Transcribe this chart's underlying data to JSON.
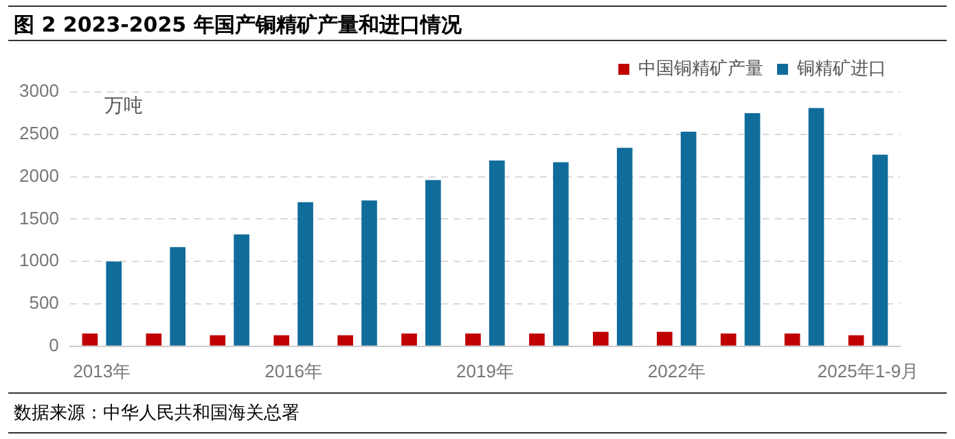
{
  "chart_data": {
    "type": "bar",
    "title": "图 2 2023-2025 年国产铜精矿产量和进口情况",
    "ylabel": "万吨",
    "categories": [
      "2013年",
      null,
      null,
      "2016年",
      null,
      null,
      "2019年",
      null,
      null,
      "2022年",
      null,
      null,
      "2025年1-9月"
    ],
    "series": [
      {
        "name": "中国铜精矿产量",
        "color": "#c00000",
        "values": [
          150,
          150,
          130,
          130,
          130,
          150,
          150,
          150,
          170,
          170,
          150,
          150,
          130
        ]
      },
      {
        "name": "铜精矿进口",
        "color": "#106c9b",
        "values": [
          1000,
          1170,
          1320,
          1700,
          1720,
          1960,
          2190,
          2170,
          2340,
          2530,
          2750,
          2810,
          2260
        ]
      }
    ],
    "ylim": [
      0,
      3000
    ],
    "yticks": [
      0,
      500,
      1000,
      1500,
      2000,
      2500,
      3000
    ],
    "grid": "y",
    "legend": "top right",
    "annotations": [
      "数据来源：中华人民共和国海关总署"
    ]
  }
}
